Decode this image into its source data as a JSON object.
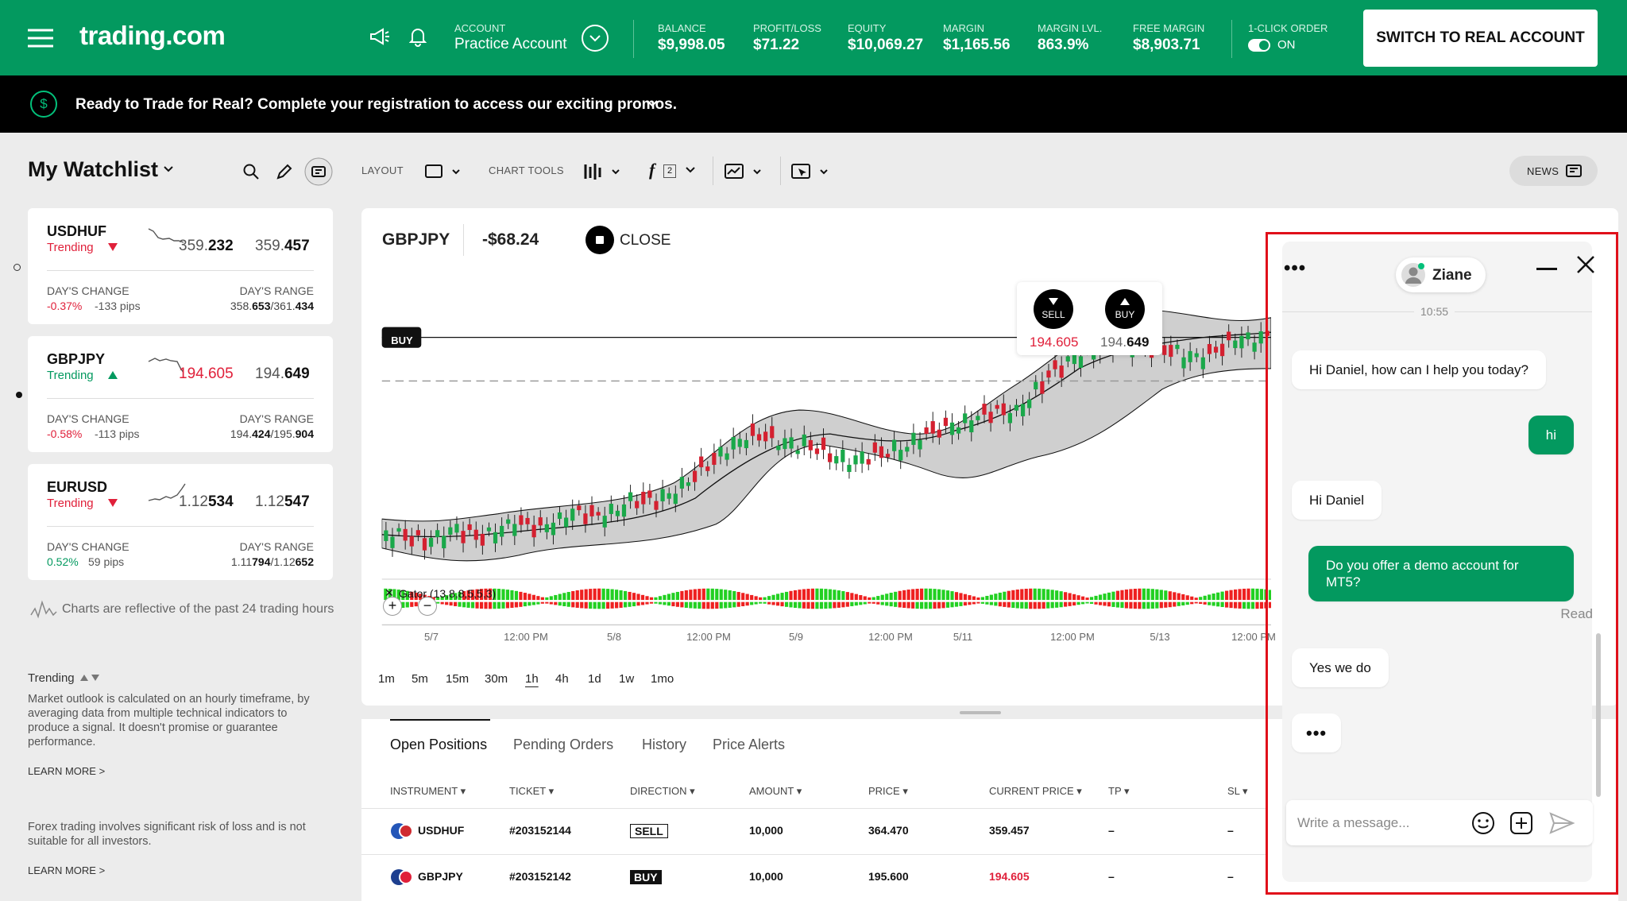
{
  "header": {
    "logo": "trading.com",
    "account_label": "ACCOUNT",
    "account": "Practice Account",
    "stats": [
      {
        "label": "BALANCE",
        "value": "$9,998.05"
      },
      {
        "label": "PROFIT/LOSS",
        "value": "$71.22"
      },
      {
        "label": "EQUITY",
        "value": "$10,069.27"
      },
      {
        "label": "MARGIN",
        "value": "$1,165.56"
      },
      {
        "label": "MARGIN LVL.",
        "value": "863.9%"
      },
      {
        "label": "FREE MARGIN",
        "value": "$8,903.71"
      }
    ],
    "one_click_label": "1-CLICK ORDER",
    "one_click_state": "ON",
    "switch_button": "SWITCH TO REAL ACCOUNT"
  },
  "banner": {
    "icon": "$",
    "text": "Ready to Trade for Real? Complete your registration to access our exciting promos."
  },
  "toolbar": {
    "watchlist_title": "My Watchlist",
    "layout": "LAYOUT",
    "chart_tools": "CHART TOOLS",
    "indicator_count": "2",
    "news": "NEWS"
  },
  "watchlist": [
    {
      "symbol": "USDHUF",
      "trend": "Trending",
      "direction": "down",
      "bid": [
        "359.",
        "232"
      ],
      "bid_highlight": false,
      "ask": [
        "359.",
        "457"
      ],
      "change_label": "DAY'S CHANGE",
      "change": "-0.37%",
      "pips": "-133 pips",
      "range_label": "DAY'S RANGE",
      "range": [
        "358.",
        "653",
        "/361.",
        "434"
      ]
    },
    {
      "symbol": "GBPJPY",
      "trend": "Trending",
      "direction": "up",
      "bid": [
        "194.605"
      ],
      "bid_highlight": true,
      "ask": [
        "194.",
        "649"
      ],
      "change_label": "DAY'S CHANGE",
      "change": "-0.58%",
      "pips": "-113 pips",
      "range_label": "DAY'S RANGE",
      "range": [
        "194.",
        "424",
        "/195.",
        "904"
      ]
    },
    {
      "symbol": "EURUSD",
      "trend": "Trending",
      "direction": "down",
      "bid": [
        "1.12",
        "534"
      ],
      "bid_highlight": false,
      "ask": [
        "1.12",
        "547"
      ],
      "change_label": "DAY'S CHANGE",
      "change": "0.52%",
      "pips": "59 pips",
      "range_label": "DAY'S RANGE",
      "range": [
        "1.11",
        "794",
        "/1.12",
        "652"
      ]
    }
  ],
  "sidebar": {
    "note": "Charts are reflective of the past 24 trading hours",
    "trending_title": "Trending",
    "trending_text": "Market outlook is calculated on an hourly timeframe, by averaging data from multiple technical indicators to produce a signal. It doesn't promise or guarantee performance.",
    "learn_more_1": "LEARN MORE >",
    "disclaimer": "Forex trading involves significant risk of loss and is not suitable for all investors.",
    "learn_more_2": "LEARN MORE >"
  },
  "chart": {
    "symbol": "GBPJPY",
    "pnl": "-$68.24",
    "close": "CLOSE",
    "position_tag": "BUY",
    "sell_label": "SELL",
    "sell_price": "194.605",
    "buy_label": "BUY",
    "buy_price": [
      "194.",
      "649"
    ],
    "indicator": "Gator (13,8,8,5,5,3)",
    "x_labels": [
      "5/7",
      "12:00 PM",
      "5/8",
      "12:00 PM",
      "5/9",
      "12:00 PM",
      "5/11",
      "12:00 PM",
      "5/13",
      "12:00 PM"
    ],
    "timeframes": [
      "1m",
      "5m",
      "15m",
      "30m",
      "1h",
      "4h",
      "1d",
      "1w",
      "1mo"
    ],
    "active_timeframe": 4
  },
  "positions": {
    "tabs": [
      "Open Positions",
      "Pending Orders",
      "History",
      "Price Alerts"
    ],
    "active_tab": 0,
    "columns": [
      "INSTRUMENT ▾",
      "TICKET ▾",
      "DIRECTION ▾",
      "AMOUNT ▾",
      "PRICE ▾",
      "CURRENT PRICE ▾",
      "TP ▾",
      "SL ▾"
    ],
    "rows": [
      [
        "USDHUF",
        "#203152144",
        "SELL",
        "10,000",
        "364.470",
        "359.457",
        "–",
        "–"
      ],
      [
        "GBPJPY",
        "#203152142",
        "BUY",
        "10,000",
        "195.600",
        "194.605",
        "–",
        "–"
      ]
    ]
  },
  "chat": {
    "agent": "Ziane",
    "time": "10:55",
    "messages": [
      {
        "from": "agent",
        "text": "Hi Daniel, how can I help you today?"
      },
      {
        "from": "user",
        "text": "hi"
      },
      {
        "from": "agent",
        "text": "Hi Daniel"
      },
      {
        "from": "user",
        "text": "Do you offer a demo account for MT5?",
        "status": "Read"
      },
      {
        "from": "agent",
        "text": "Yes we do"
      }
    ],
    "placeholder": "Write a message..."
  }
}
